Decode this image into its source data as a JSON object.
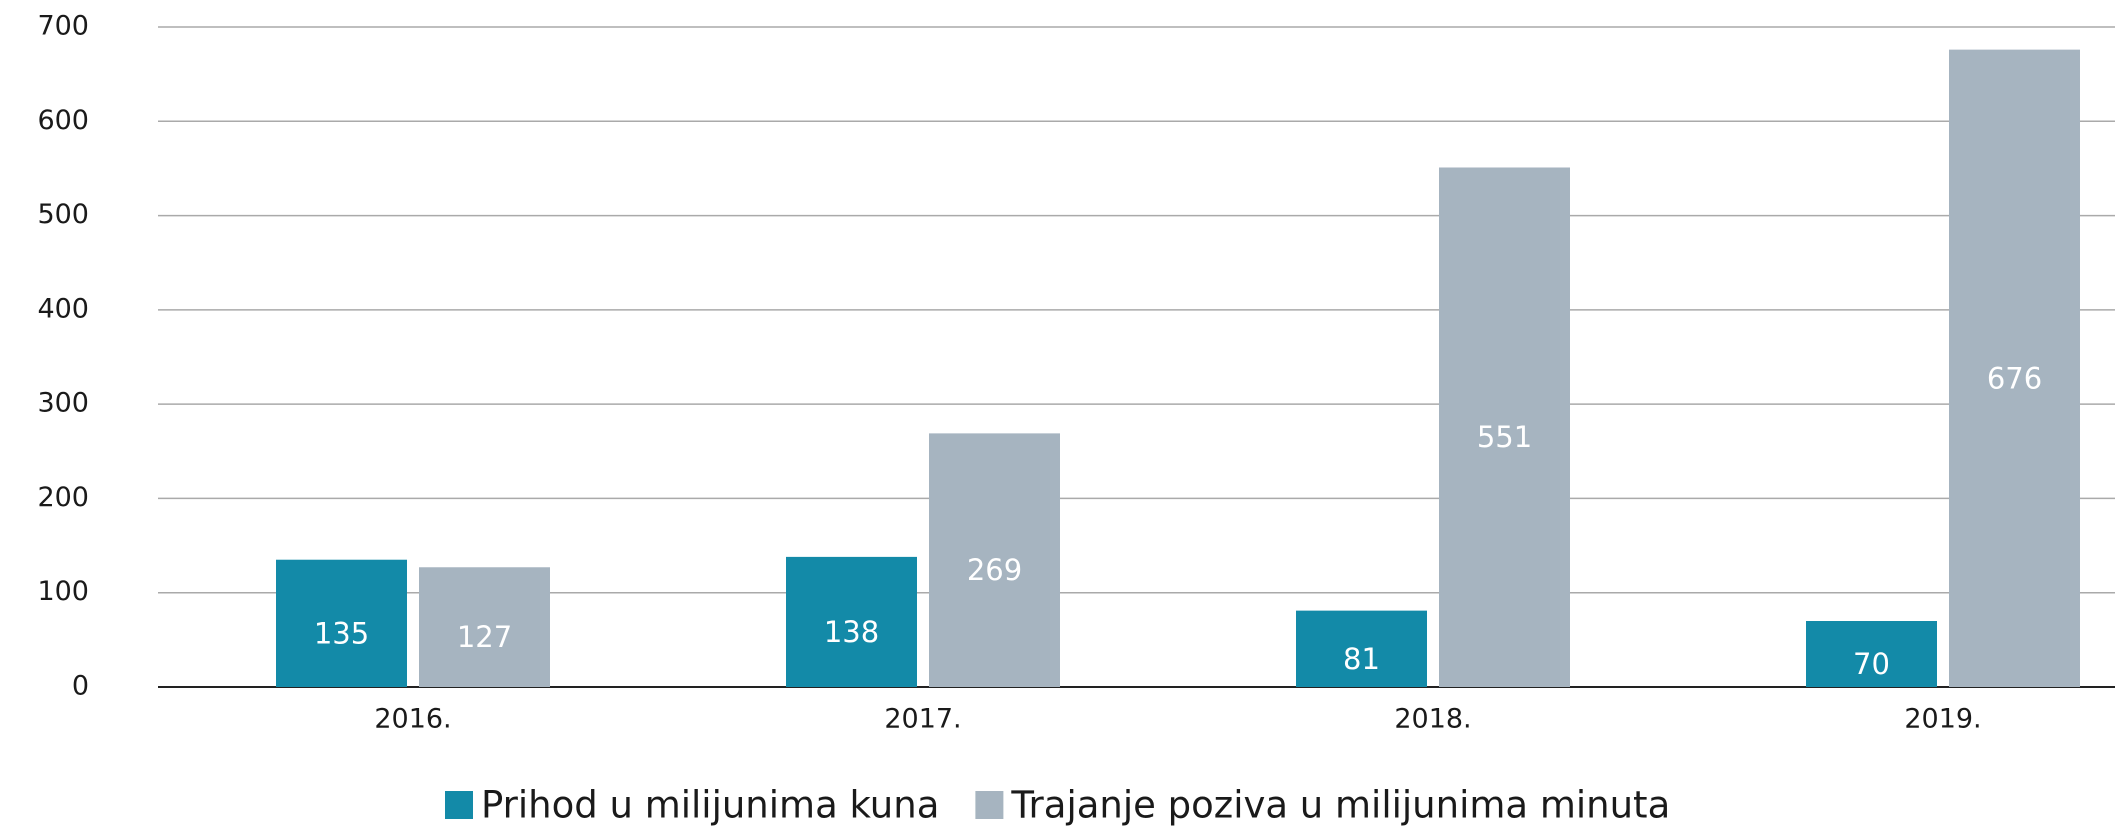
{
  "chart_data": {
    "type": "bar",
    "categories": [
      "2016.",
      "2017.",
      "2018.",
      "2019."
    ],
    "series": [
      {
        "name": "Prihod u milijunima kuna",
        "color": "#138aa8",
        "values": [
          135,
          138,
          81,
          70
        ]
      },
      {
        "name": "Trajanje poziva u milijunima minuta",
        "color": "#a6b4c0",
        "values": [
          127,
          269,
          551,
          676
        ]
      }
    ],
    "ylim": [
      0,
      700
    ],
    "yticks": [
      0,
      100,
      200,
      300,
      400,
      500,
      600,
      700
    ],
    "grid": true,
    "legend": "bottom"
  }
}
